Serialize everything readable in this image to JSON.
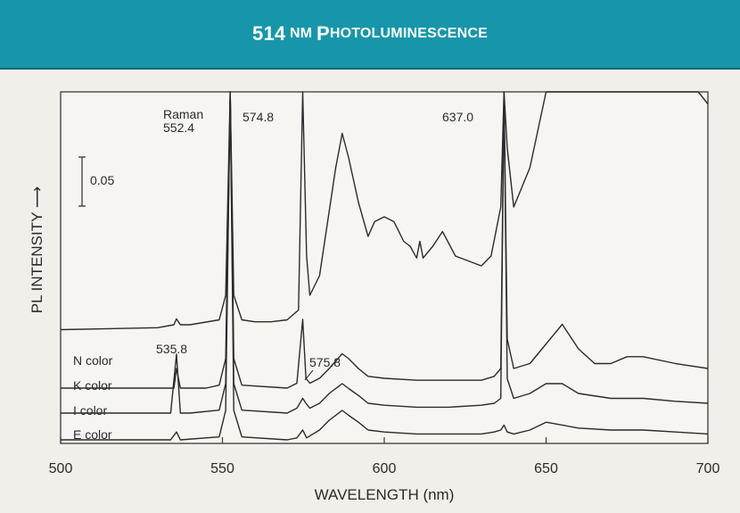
{
  "title": {
    "num": "514",
    "nm": "NM",
    "p": "P",
    "rest": "HOTOLUMINESCENCE"
  },
  "chart_data": {
    "type": "line",
    "xlabel": "WAVELENGTH (nm)",
    "ylabel": "PL INTENSITY ⟶",
    "xlim": [
      500,
      700
    ],
    "xticks": [
      500,
      550,
      600,
      650,
      700
    ],
    "scale_bar_label": "0.05",
    "grid": false,
    "series": [
      {
        "name": "N color",
        "x": [
          500,
          530,
          535,
          535.8,
          537,
          540,
          549,
          551,
          552.4,
          553.5,
          556,
          560,
          565,
          570,
          573.5,
          574.8,
          576,
          577,
          580,
          585,
          587,
          589,
          592,
          595,
          597,
          600,
          603,
          606,
          608,
          610,
          611,
          612,
          615,
          618,
          622,
          630,
          633,
          636,
          637.0,
          638,
          640,
          645,
          650,
          653,
          655,
          658,
          662,
          666,
          672,
          678,
          683,
          688,
          690,
          692,
          697,
          700
        ],
        "y": [
          0.035,
          0.037,
          0.04,
          0.046,
          0.04,
          0.04,
          0.045,
          0.07,
          0.85,
          0.07,
          0.045,
          0.043,
          0.043,
          0.045,
          0.055,
          0.85,
          0.11,
          0.07,
          0.09,
          0.2,
          0.235,
          0.21,
          0.165,
          0.13,
          0.145,
          0.15,
          0.145,
          0.125,
          0.12,
          0.108,
          0.125,
          0.108,
          0.12,
          0.135,
          0.11,
          0.1,
          0.11,
          0.16,
          0.85,
          0.22,
          0.16,
          0.2,
          0.3,
          0.4,
          0.465,
          0.42,
          0.33,
          0.29,
          0.32,
          0.38,
          0.4,
          0.37,
          0.33,
          0.32,
          0.29,
          0.265
        ]
      },
      {
        "name": "K color",
        "x": [
          500,
          530,
          535,
          535.8,
          537,
          545,
          549,
          551,
          552.4,
          553.5,
          556,
          570,
          573,
          574.8,
          575.8,
          577,
          580,
          583,
          587,
          589,
          592,
          595,
          600,
          610,
          620,
          630,
          634,
          636,
          637.0,
          638,
          640,
          645,
          650,
          655,
          660,
          665,
          670,
          675,
          680,
          690,
          700
        ],
        "y": [
          0.0,
          0.0,
          0.0,
          0.02,
          0.0,
          0.0,
          0.003,
          0.03,
          0.9,
          0.03,
          0.003,
          0.0,
          0.005,
          0.07,
          0.01,
          0.005,
          0.01,
          0.02,
          0.035,
          0.03,
          0.02,
          0.012,
          0.01,
          0.008,
          0.008,
          0.008,
          0.012,
          0.02,
          0.9,
          0.05,
          0.02,
          0.025,
          0.045,
          0.065,
          0.04,
          0.025,
          0.025,
          0.032,
          0.032,
          0.025,
          0.02
        ]
      },
      {
        "name": "I color",
        "x": [
          500,
          520,
          530,
          534,
          535.8,
          537,
          540,
          549,
          551,
          552.4,
          553.5,
          556,
          570,
          573,
          574.8,
          575.8,
          577,
          580,
          583,
          587,
          589,
          592,
          595,
          600,
          610,
          620,
          630,
          634,
          636,
          637.0,
          638,
          640,
          645,
          650,
          655,
          660,
          670,
          680,
          690,
          700
        ],
        "y": [
          0.0,
          0.0,
          0.0,
          0.0,
          0.06,
          0.0,
          0.0,
          0.003,
          0.03,
          0.9,
          0.03,
          0.003,
          0.0,
          0.005,
          0.015,
          0.01,
          0.005,
          0.01,
          0.02,
          0.03,
          0.025,
          0.018,
          0.01,
          0.008,
          0.006,
          0.006,
          0.008,
          0.01,
          0.015,
          0.65,
          0.035,
          0.015,
          0.02,
          0.03,
          0.03,
          0.02,
          0.015,
          0.015,
          0.012,
          0.01
        ]
      },
      {
        "name": "E color",
        "x": [
          500,
          530,
          534,
          535.8,
          537,
          549,
          551,
          552.4,
          553.5,
          556,
          570,
          573,
          574.8,
          576,
          580,
          583,
          587,
          589,
          592,
          595,
          600,
          610,
          620,
          630,
          634,
          636,
          637.0,
          638,
          640,
          645,
          650,
          660,
          670,
          680,
          690,
          700
        ],
        "y": [
          0.0,
          0.0,
          0.0,
          0.008,
          0.0,
          0.003,
          0.03,
          0.9,
          0.03,
          0.003,
          0.0,
          0.002,
          0.01,
          0.002,
          0.01,
          0.02,
          0.03,
          0.025,
          0.018,
          0.01,
          0.008,
          0.006,
          0.006,
          0.006,
          0.008,
          0.01,
          0.015,
          0.008,
          0.006,
          0.01,
          0.018,
          0.012,
          0.01,
          0.01,
          0.008,
          0.006
        ]
      }
    ],
    "annotations": [
      {
        "text": "Raman",
        "x": 552.4
      },
      {
        "text": "552.4",
        "x": 552.4
      },
      {
        "text": "574.8",
        "x": 574.8
      },
      {
        "text": "637.0",
        "x": 637.0
      },
      {
        "text": "535.8",
        "x": 535.8
      },
      {
        "text": "575.8",
        "x": 575.8
      }
    ]
  }
}
